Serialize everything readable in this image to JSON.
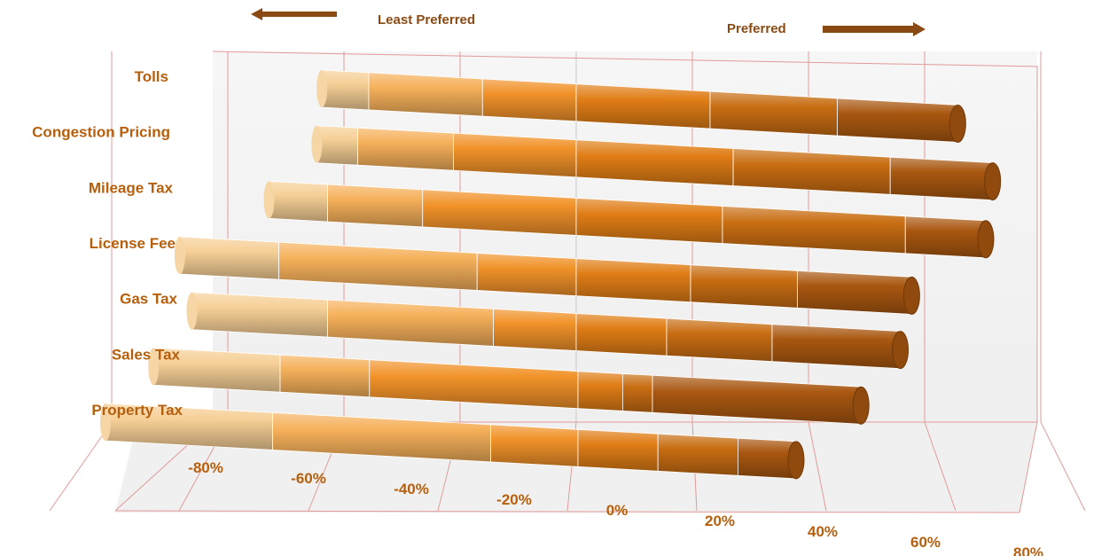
{
  "chart_data": {
    "type": "bar",
    "stacked": true,
    "orientation": "horizontal",
    "style": "3d-cylinder",
    "direction_labels": {
      "left": "Least Preferred",
      "right": "Preferred"
    },
    "categories": [
      "Tolls",
      "Congestion Pricing",
      "Mileage Tax",
      "License Fee",
      "Gas Tax",
      "Sales Tax",
      "Property Tax"
    ],
    "segments": [
      [
        -38,
        -31,
        -14,
        0,
        20,
        39,
        57
      ],
      [
        -38,
        -32,
        -18,
        0,
        23,
        46,
        61
      ],
      [
        -42,
        -34,
        -21,
        0,
        20,
        45,
        56
      ],
      [
        -52,
        -39,
        -13,
        0,
        15,
        29,
        44
      ],
      [
        -51,
        -33,
        -11,
        0,
        12,
        26,
        43
      ],
      [
        -57,
        -40,
        -28,
        0,
        6,
        10,
        38
      ],
      [
        -65,
        -42,
        -12,
        0,
        11,
        22,
        30
      ]
    ],
    "xlim": [
      -80,
      80
    ],
    "xticks": [
      "-80%",
      "-60%",
      "-40%",
      "-20%",
      "0%",
      "20%",
      "40%",
      "60%",
      "80%"
    ],
    "colors": [
      "#f6cf96",
      "#f5b05a",
      "#f19229",
      "#e07d16",
      "#c86d12",
      "#a95710",
      "#7e3f0d"
    ],
    "legend": "none",
    "grid": true
  }
}
